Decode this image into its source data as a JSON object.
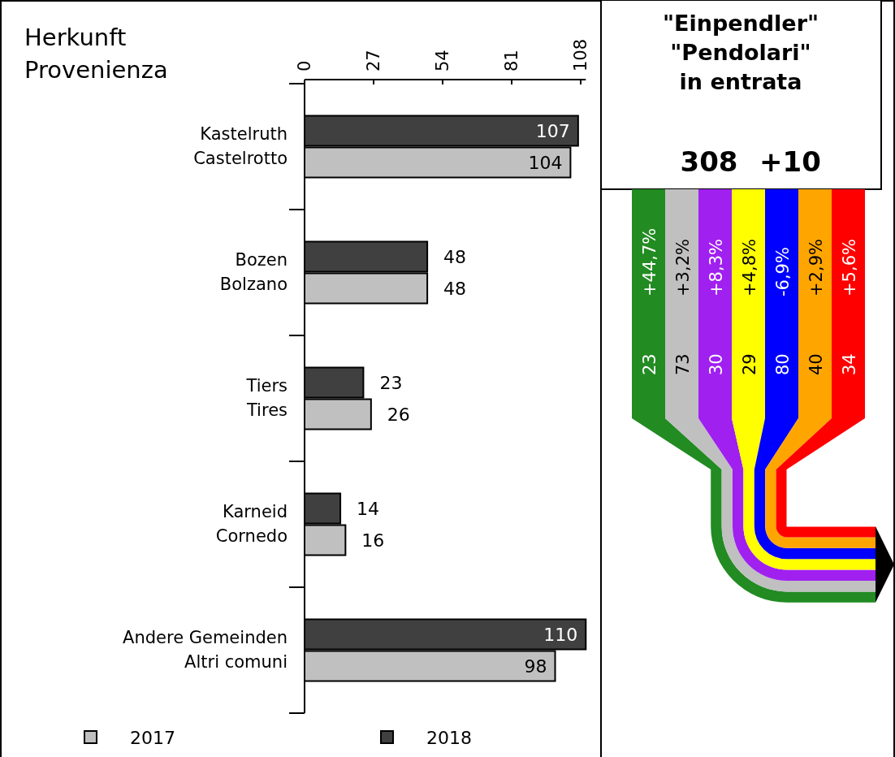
{
  "chart_data": [
    {
      "type": "bar",
      "orientation": "horizontal",
      "title": "Herkunft\nProvenienza",
      "categories": [
        "Kastelruth\nCastelrotto",
        "Bozen\nBolzano",
        "Tiers\nTires",
        "Karneid\nCornedo",
        "Andere Gemeinden\nAltri comuni"
      ],
      "series": [
        {
          "name": "2018",
          "color": "#404040",
          "values": [
            107,
            48,
            23,
            14,
            110
          ]
        },
        {
          "name": "2017",
          "color": "#c0c0c0",
          "values": [
            104,
            48,
            26,
            16,
            98
          ]
        }
      ],
      "xlim": [
        0,
        110
      ],
      "xticks": [
        0,
        27,
        54,
        81,
        108
      ],
      "data_labels": true,
      "legend": "bottom",
      "grid": false
    },
    {
      "type": "other",
      "title": "\"Einpendler\"\n\"Pendolari\"\nin entrata",
      "subtitle": "308 +10",
      "values": [
        23,
        73,
        30,
        29,
        80,
        40,
        34
      ],
      "data_labels": true,
      "colors": [
        "#228b22",
        "#c0c0c0",
        "#a020f0",
        "#ffff00",
        "#0000ff",
        "#ffa500",
        "#ff0000"
      ],
      "annotations": [
        "+44,7%",
        "+3,2%",
        "+8,3%",
        "+4,8%",
        "-6,9%",
        "+2,9%",
        "+5,6%"
      ]
    }
  ]
}
